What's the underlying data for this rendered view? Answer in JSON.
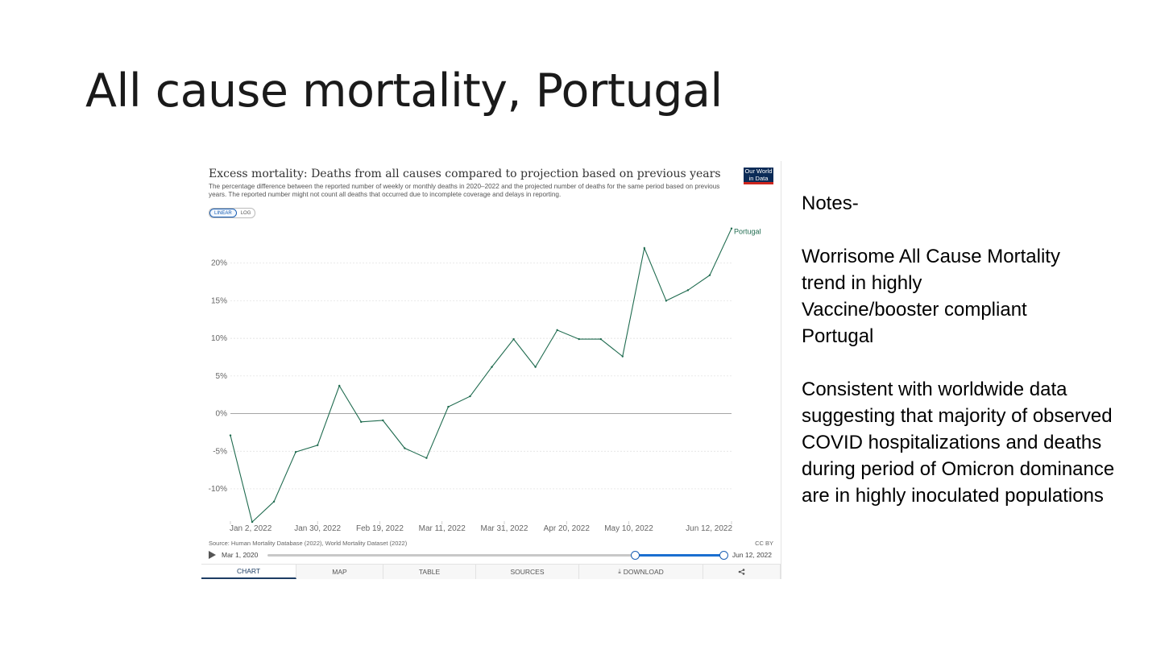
{
  "slide": {
    "title": "All cause mortality, Portugal",
    "notes": {
      "heading": "Notes-",
      "paragraph1": [
        "Worrisome All Cause Mortality",
        "trend in highly",
        "Vaccine/booster compliant",
        "Portugal"
      ],
      "paragraph2": [
        "Consistent with worldwide data",
        "suggesting that majority of observed",
        "COVID hospitalizations and deaths",
        "during period of Omicron dominance",
        "are in highly inoculated populations"
      ]
    }
  },
  "owid": {
    "logo_line1": "Our World",
    "logo_line2": "in Data",
    "scale_linear": "LINEAR",
    "scale_log": "LOG",
    "source": "Source: Human Mortality Database (2022), World Mortality Dataset (2022)",
    "license": "CC BY",
    "timeline": {
      "start": "Mar 1, 2020",
      "end": "Jun 12, 2022",
      "selected_start_fraction": 0.806,
      "selected_end_fraction": 1.0
    },
    "tabs": [
      {
        "label": "CHART",
        "active": true
      },
      {
        "label": "MAP",
        "active": false
      },
      {
        "label": "TABLE",
        "active": false
      },
      {
        "label": "SOURCES",
        "active": false
      },
      {
        "label": "DOWNLOAD",
        "active": false
      },
      {
        "label": "",
        "active": false
      }
    ],
    "colors": {
      "series": "#1f6b4f",
      "accent": "#1a5fb4",
      "logo_bg": "#0b2b57",
      "logo_bar": "#ce261e"
    }
  },
  "chart_data": {
    "type": "line",
    "title": "Excess mortality: Deaths from all causes compared to projection based on previous years",
    "subtitle": "The percentage difference between the reported number of weekly or monthly deaths in 2020–2022 and the projected number of deaths for the same period based on previous years. The reported number might not count all deaths that occurred due to incomplete coverage and delays in reporting.",
    "xlabel": "",
    "ylabel": "",
    "ylim": [
      -14.5,
      25
    ],
    "y_ticks": [
      -10,
      -5,
      0,
      5,
      10,
      15,
      20
    ],
    "y_tick_labels": [
      "-10%",
      "-5%",
      "0%",
      "5%",
      "10%",
      "15%",
      "20%"
    ],
    "x_tick_labels": [
      "Jan 2, 2022",
      "Jan 30, 2022",
      "Feb 19, 2022",
      "Mar 11, 2022",
      "Mar 31, 2022",
      "Apr 20, 2022",
      "May 10, 2022",
      "Jun 12, 2022"
    ],
    "x_tick_dates": [
      "2022-01-02",
      "2022-01-30",
      "2022-02-19",
      "2022-03-11",
      "2022-03-31",
      "2022-04-20",
      "2022-05-10",
      "2022-06-12"
    ],
    "grid": true,
    "legend": "end-label",
    "series": [
      {
        "name": "Portugal",
        "color": "#1f6b4f",
        "points": [
          [
            "2022-01-02",
            -2.9
          ],
          [
            "2022-01-09",
            -14.4
          ],
          [
            "2022-01-16",
            -11.7
          ],
          [
            "2022-01-23",
            -5.1
          ],
          [
            "2022-01-30",
            -4.2
          ],
          [
            "2022-02-06",
            3.7
          ],
          [
            "2022-02-13",
            -1.1
          ],
          [
            "2022-02-20",
            -0.9
          ],
          [
            "2022-02-27",
            -4.6
          ],
          [
            "2022-03-06",
            -5.9
          ],
          [
            "2022-03-13",
            0.9
          ],
          [
            "2022-03-20",
            2.3
          ],
          [
            "2022-03-27",
            6.2
          ],
          [
            "2022-04-03",
            9.9
          ],
          [
            "2022-04-10",
            6.2
          ],
          [
            "2022-04-17",
            11.1
          ],
          [
            "2022-04-24",
            9.9
          ],
          [
            "2022-05-01",
            9.9
          ],
          [
            "2022-05-08",
            7.6
          ],
          [
            "2022-05-15",
            22.0
          ],
          [
            "2022-05-22",
            15.0
          ],
          [
            "2022-05-29",
            16.4
          ],
          [
            "2022-06-05",
            18.4
          ],
          [
            "2022-06-12",
            24.6
          ]
        ]
      }
    ]
  }
}
